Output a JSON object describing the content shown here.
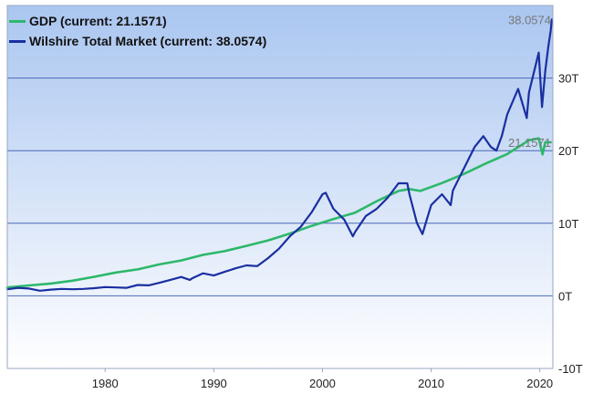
{
  "colors": {
    "bg_top": "#aac6f0",
    "bg_bottom": "#ffffff",
    "grid": "#4a68b8",
    "gdp": "#2db86a",
    "wilshire": "#1a2fa0",
    "label": "#777777"
  },
  "legend": [
    {
      "label": "GDP (current: 21.1571)",
      "color": "#2db86a"
    },
    {
      "label": "Wilshire Total Market (current: 38.0574)",
      "color": "#1a2fa0"
    }
  ],
  "chart_data": {
    "type": "line",
    "xlim": [
      1971,
      2021.2
    ],
    "ylim": [
      -10,
      40
    ],
    "x_ticks": [
      1980,
      1990,
      2000,
      2010,
      2020
    ],
    "x_tick_labels": [
      "1980",
      "1990",
      "2000",
      "2010",
      "2020"
    ],
    "y_ticks": [
      -10,
      0,
      10,
      20,
      30
    ],
    "y_tick_labels": [
      "-10T",
      "0T",
      "10T",
      "20T",
      "30T"
    ],
    "grid": true,
    "legend_position": "top-left",
    "end_labels": [
      {
        "series": "GDP",
        "text": "21.1571",
        "value": 21.1571
      },
      {
        "series": "Wilshire Total Market",
        "text": "38.0574",
        "value": 38.0574
      }
    ],
    "series": [
      {
        "name": "GDP",
        "color": "#2db86a",
        "points": [
          [
            1971,
            1.16
          ],
          [
            1973,
            1.43
          ],
          [
            1975,
            1.69
          ],
          [
            1977,
            2.08
          ],
          [
            1979,
            2.63
          ],
          [
            1981,
            3.21
          ],
          [
            1983,
            3.64
          ],
          [
            1985,
            4.34
          ],
          [
            1987,
            4.87
          ],
          [
            1989,
            5.64
          ],
          [
            1991,
            6.16
          ],
          [
            1993,
            6.88
          ],
          [
            1995,
            7.64
          ],
          [
            1997,
            8.58
          ],
          [
            1999,
            9.63
          ],
          [
            2001,
            10.58
          ],
          [
            2003,
            11.46
          ],
          [
            2005,
            13.04
          ],
          [
            2007,
            14.45
          ],
          [
            2008,
            14.71
          ],
          [
            2009,
            14.45
          ],
          [
            2011,
            15.54
          ],
          [
            2013,
            16.78
          ],
          [
            2015,
            18.22
          ],
          [
            2017,
            19.54
          ],
          [
            2019,
            21.43
          ],
          [
            2019.9,
            21.7
          ],
          [
            2020.25,
            19.48
          ],
          [
            2020.5,
            21.14
          ],
          [
            2021.0,
            21.16
          ]
        ]
      },
      {
        "name": "Wilshire Total Market",
        "color": "#1a2fa0",
        "points": [
          [
            1971,
            0.9
          ],
          [
            1972,
            1.1
          ],
          [
            1973,
            1.0
          ],
          [
            1974,
            0.7
          ],
          [
            1975,
            0.85
          ],
          [
            1976,
            0.95
          ],
          [
            1977,
            0.9
          ],
          [
            1978,
            0.95
          ],
          [
            1979,
            1.05
          ],
          [
            1980,
            1.2
          ],
          [
            1981,
            1.15
          ],
          [
            1982,
            1.1
          ],
          [
            1983,
            1.5
          ],
          [
            1984,
            1.45
          ],
          [
            1985,
            1.8
          ],
          [
            1986,
            2.2
          ],
          [
            1987,
            2.6
          ],
          [
            1987.8,
            2.2
          ],
          [
            1988,
            2.4
          ],
          [
            1989,
            3.1
          ],
          [
            1990,
            2.8
          ],
          [
            1991,
            3.3
          ],
          [
            1992,
            3.8
          ],
          [
            1993,
            4.2
          ],
          [
            1994,
            4.1
          ],
          [
            1995,
            5.2
          ],
          [
            1996,
            6.5
          ],
          [
            1997,
            8.2
          ],
          [
            1998,
            9.5
          ],
          [
            1999,
            11.5
          ],
          [
            2000,
            14.0
          ],
          [
            2000.3,
            14.2
          ],
          [
            2001,
            12.0
          ],
          [
            2002,
            10.5
          ],
          [
            2002.8,
            8.2
          ],
          [
            2003,
            8.8
          ],
          [
            2004,
            11.0
          ],
          [
            2005,
            12.0
          ],
          [
            2006,
            13.5
          ],
          [
            2007,
            15.5
          ],
          [
            2007.8,
            15.5
          ],
          [
            2008,
            14.0
          ],
          [
            2008.7,
            10.0
          ],
          [
            2009.2,
            8.5
          ],
          [
            2009.5,
            10.0
          ],
          [
            2010,
            12.5
          ],
          [
            2011,
            14.0
          ],
          [
            2011.8,
            12.5
          ],
          [
            2012,
            14.5
          ],
          [
            2013,
            17.5
          ],
          [
            2014,
            20.5
          ],
          [
            2014.8,
            22.0
          ],
          [
            2015.5,
            20.5
          ],
          [
            2016,
            20.0
          ],
          [
            2016.5,
            22.0
          ],
          [
            2017,
            25.0
          ],
          [
            2018,
            28.5
          ],
          [
            2018.8,
            24.5
          ],
          [
            2019,
            28.0
          ],
          [
            2019.9,
            33.5
          ],
          [
            2020.2,
            26.0
          ],
          [
            2020.5,
            31.0
          ],
          [
            2020.8,
            34.5
          ],
          [
            2021.0,
            36.5
          ],
          [
            2021.1,
            38.06
          ]
        ]
      }
    ]
  }
}
